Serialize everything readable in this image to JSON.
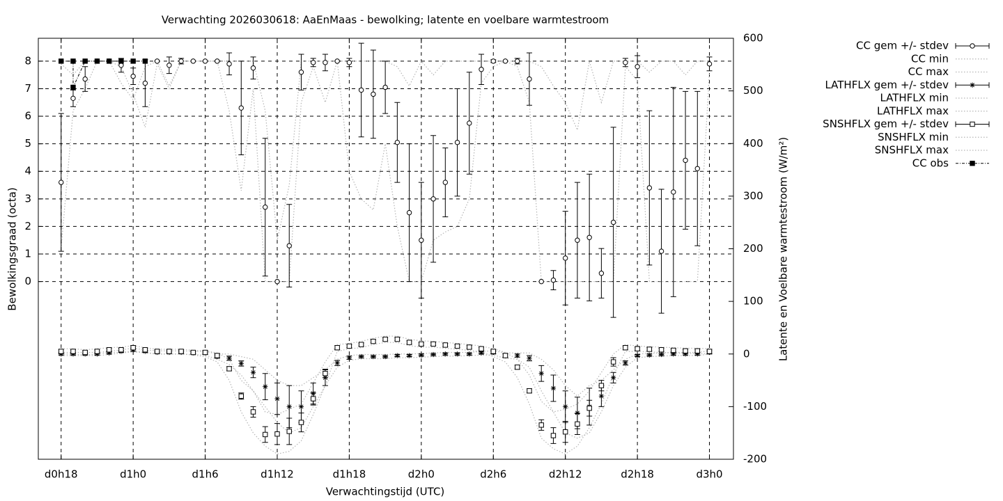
{
  "chart_data": {
    "type": "errorbar",
    "title": "Verwachting 2026030618: AaEnMaas - bewolking; latente en voelbare warmtestroom",
    "x_label": "Verwachtingstijd (UTC)",
    "y_label": "Bewolkingsgraad (octa)",
    "y2_label": "Latente en Voelbare warmtestroom (W/m²)",
    "xlim": [
      16.1,
      74.0
    ],
    "xticks": [
      {
        "value": 18,
        "label": "d0h18"
      },
      {
        "value": 24,
        "label": "d1h0"
      },
      {
        "value": 30,
        "label": "d1h6"
      },
      {
        "value": 36,
        "label": "d1h12"
      },
      {
        "value": 42,
        "label": "d1h18"
      },
      {
        "value": 48,
        "label": "d2h0"
      },
      {
        "value": 54,
        "label": "d2h6"
      },
      {
        "value": 60,
        "label": "d2h12"
      },
      {
        "value": 66,
        "label": "d2h18"
      },
      {
        "value": 72,
        "label": "d3h0"
      }
    ],
    "ylim": [
      -6.45,
      8.83
    ],
    "yticks": [
      0,
      1,
      2,
      3,
      4,
      5,
      6,
      7,
      8
    ],
    "y2lim": [
      -200,
      600
    ],
    "y2ticks": [
      -200,
      -100,
      0,
      100,
      200,
      300,
      400,
      500,
      600
    ],
    "grid": true,
    "legend": "outside-right",
    "x": [
      18,
      19,
      20,
      21,
      22,
      23,
      24,
      25,
      26,
      27,
      28,
      29,
      30,
      31,
      32,
      33,
      34,
      35,
      36,
      37,
      38,
      39,
      40,
      41,
      42,
      43,
      44,
      45,
      46,
      47,
      48,
      49,
      50,
      51,
      52,
      53,
      54,
      55,
      56,
      57,
      58,
      59,
      60,
      61,
      62,
      63,
      64,
      65,
      66,
      67,
      68,
      69,
      70,
      71,
      72
    ],
    "series": [
      {
        "name": "CC gem +/- stdev",
        "axis": "y",
        "style": "errorbar",
        "marker": "circle",
        "color": "#000000",
        "values": [
          3.6,
          6.65,
          7.35,
          8,
          8,
          7.85,
          7.45,
          7.2,
          8,
          7.85,
          8,
          8,
          8,
          8,
          7.9,
          6.3,
          7.75,
          2.7,
          0,
          1.3,
          7.6,
          7.95,
          7.95,
          8,
          7.95,
          6.95,
          6.8,
          7.05,
          5.05,
          2.5,
          1.5,
          3,
          3.6,
          5.05,
          5.75,
          7.7,
          8,
          8,
          8,
          7.35,
          0,
          0.05,
          0.85,
          1.5,
          1.6,
          0.3,
          2.15,
          7.95,
          7.8,
          3.4,
          1.1,
          3.25,
          4.4,
          4.1,
          7.9
        ],
        "errors": [
          2.5,
          0.3,
          0.45,
          0,
          0,
          0.25,
          0.3,
          0.85,
          0,
          0.3,
          0.1,
          0,
          0,
          0,
          0.4,
          1.7,
          0.4,
          2.5,
          0,
          1.5,
          0.65,
          0.15,
          0.3,
          0,
          0.15,
          1.7,
          1.6,
          0.95,
          1.45,
          2.5,
          2.1,
          2.3,
          1.25,
          1.95,
          1.85,
          0.55,
          0.05,
          0,
          0.1,
          0.95,
          0,
          0.35,
          1.7,
          2.1,
          2.3,
          0.9,
          3.45,
          0.15,
          0.4,
          2.8,
          2.25,
          3.8,
          2.5,
          2.8,
          0.25
        ]
      },
      {
        "name": "CC min",
        "axis": "y",
        "style": "dotted",
        "color": "#b4b4b4",
        "values": [
          1.2,
          6.2,
          7,
          8,
          8,
          7.8,
          6.8,
          5.6,
          7.9,
          7,
          8,
          8,
          8,
          8,
          6.2,
          3.3,
          7,
          0,
          0,
          0,
          6.5,
          7.8,
          6.5,
          8,
          4,
          3,
          2.6,
          5,
          2,
          0,
          0,
          1.5,
          1.8,
          2,
          3,
          7.2,
          7.8,
          8,
          7.8,
          6.5,
          0,
          0,
          0,
          0,
          0,
          0,
          0,
          7.8,
          7.3,
          0,
          0,
          0,
          0,
          0,
          7.6
        ]
      },
      {
        "name": "CC max",
        "axis": "y",
        "style": "dotted",
        "color": "#b4b4b4",
        "values": [
          7.9,
          7.5,
          8,
          8,
          8,
          7.2,
          6.6,
          7.8,
          8,
          7.1,
          8,
          8,
          8,
          8,
          8,
          8,
          8,
          6.2,
          1.5,
          3.5,
          8,
          8,
          8,
          8,
          8,
          8,
          8,
          8,
          7.8,
          7.1,
          8,
          7.5,
          8,
          8,
          8,
          8,
          8,
          8,
          8,
          8,
          7.8,
          7.1,
          6.5,
          5.5,
          8,
          6.5,
          8,
          8,
          8,
          7.6,
          8,
          8,
          7.5,
          8,
          8
        ]
      },
      {
        "name": "LATHFLX gem +/- stdev",
        "axis": "y2",
        "style": "errorbar",
        "marker": "asterisk",
        "color": "#000000",
        "values": [
          0,
          0,
          0,
          0,
          2,
          5,
          8,
          5,
          3,
          3,
          3,
          2,
          2,
          -5,
          -8,
          -18,
          -35,
          -62,
          -85,
          -100,
          -100,
          -75,
          -45,
          -17,
          -7,
          -5,
          -5,
          -5,
          -3,
          -3,
          -2,
          -1,
          0,
          0,
          0,
          2,
          3,
          -3,
          -3,
          -8,
          -37,
          -65,
          -100,
          -112,
          -100,
          -80,
          -45,
          -17,
          -3,
          -2,
          -1,
          0,
          0,
          0,
          3
        ],
        "errors": [
          2,
          2,
          2,
          2,
          2,
          2,
          3,
          2,
          2,
          2,
          2,
          2,
          2,
          3,
          4,
          5,
          10,
          25,
          30,
          40,
          30,
          20,
          15,
          5,
          3,
          2,
          2,
          2,
          2,
          2,
          2,
          2,
          2,
          2,
          2,
          2,
          3,
          3,
          3,
          5,
          15,
          25,
          30,
          30,
          35,
          20,
          10,
          4,
          2,
          2,
          2,
          2,
          2,
          2,
          3
        ]
      },
      {
        "name": "LATHFLX min",
        "axis": "y2",
        "style": "dotted",
        "color": "#b4b4b4",
        "values": [
          -3,
          -3,
          -3,
          -3,
          -1,
          2,
          4,
          2,
          0,
          0,
          0,
          -1,
          -2,
          -10,
          -20,
          -40,
          -70,
          -100,
          -130,
          -150,
          -140,
          -100,
          -60,
          -25,
          -12,
          -9,
          -9,
          -9,
          -7,
          -7,
          -6,
          -5,
          -4,
          -4,
          -3,
          -2,
          -2,
          -8,
          -10,
          -25,
          -70,
          -110,
          -150,
          -160,
          -150,
          -110,
          -60,
          -25,
          -7,
          -5,
          -4,
          -3,
          -3,
          -3,
          0
        ]
      },
      {
        "name": "LATHFLX max",
        "axis": "y2",
        "style": "dotted",
        "color": "#b4b4b4",
        "values": [
          3,
          3,
          3,
          3,
          5,
          8,
          11,
          8,
          6,
          6,
          6,
          5,
          5,
          0,
          0,
          -5,
          -10,
          -30,
          -50,
          -60,
          -60,
          -45,
          -30,
          -10,
          -3,
          -1,
          -1,
          -1,
          0,
          0,
          1,
          2,
          3,
          3,
          3,
          5,
          6,
          2,
          2,
          2,
          -10,
          -30,
          -60,
          -80,
          -60,
          -50,
          -30,
          -10,
          0,
          1,
          2,
          3,
          3,
          3,
          6
        ]
      },
      {
        "name": "SNSHFLX gem +/- stdev",
        "axis": "y2",
        "style": "errorbar",
        "marker": "square",
        "color": "#000000",
        "values": [
          5,
          5,
          3,
          5,
          8,
          8,
          12,
          8,
          5,
          5,
          5,
          3,
          3,
          -3,
          -28,
          -80,
          -110,
          -153,
          -152,
          -147,
          -130,
          -85,
          -37,
          12,
          15,
          18,
          24,
          28,
          28,
          22,
          19,
          19,
          17,
          15,
          13,
          10,
          5,
          -3,
          -25,
          -70,
          -135,
          -155,
          -148,
          -133,
          -103,
          -60,
          -15,
          12,
          10,
          9,
          8,
          7,
          6,
          6,
          5
        ],
        "errors": [
          4,
          3,
          3,
          3,
          3,
          3,
          4,
          3,
          3,
          3,
          3,
          3,
          4,
          4,
          4,
          6,
          10,
          15,
          20,
          25,
          18,
          12,
          8,
          4,
          3,
          3,
          3,
          3,
          3,
          3,
          3,
          3,
          3,
          3,
          3,
          3,
          4,
          4,
          4,
          4,
          10,
          15,
          20,
          20,
          15,
          10,
          8,
          4,
          3,
          3,
          3,
          3,
          3,
          3,
          4
        ]
      },
      {
        "name": "SNSHFLX min",
        "axis": "y2",
        "style": "dotted",
        "color": "#b4b4b4",
        "values": [
          0,
          0,
          -2,
          0,
          3,
          3,
          6,
          3,
          0,
          0,
          0,
          -2,
          -5,
          -15,
          -50,
          -110,
          -150,
          -175,
          -190,
          -185,
          -165,
          -115,
          -60,
          5,
          10,
          12,
          18,
          22,
          22,
          16,
          13,
          13,
          11,
          9,
          7,
          4,
          -5,
          -15,
          -45,
          -95,
          -160,
          -180,
          -190,
          -175,
          -140,
          -95,
          -40,
          5,
          5,
          4,
          3,
          2,
          1,
          1,
          0
        ]
      },
      {
        "name": "SNSHFLX max",
        "axis": "y2",
        "style": "dotted",
        "color": "#b4b4b4",
        "values": [
          10,
          10,
          8,
          10,
          12,
          13,
          16,
          12,
          9,
          9,
          9,
          7,
          6,
          2,
          -10,
          -50,
          -70,
          -110,
          -115,
          -105,
          -95,
          -55,
          -15,
          18,
          20,
          24,
          30,
          34,
          34,
          28,
          25,
          24,
          22,
          20,
          18,
          15,
          10,
          3,
          -10,
          -40,
          -90,
          -110,
          -105,
          -95,
          -70,
          -35,
          0,
          18,
          15,
          14,
          13,
          12,
          11,
          11,
          10
        ]
      },
      {
        "name": "CC obs",
        "axis": "y",
        "style": "points-line",
        "marker": "filled-square",
        "color": "#000000",
        "x": [
          18,
          19,
          19,
          20,
          21,
          22,
          23,
          24,
          25
        ],
        "values": [
          8,
          8,
          7.05,
          8,
          8,
          8,
          8,
          8,
          8
        ]
      }
    ]
  }
}
